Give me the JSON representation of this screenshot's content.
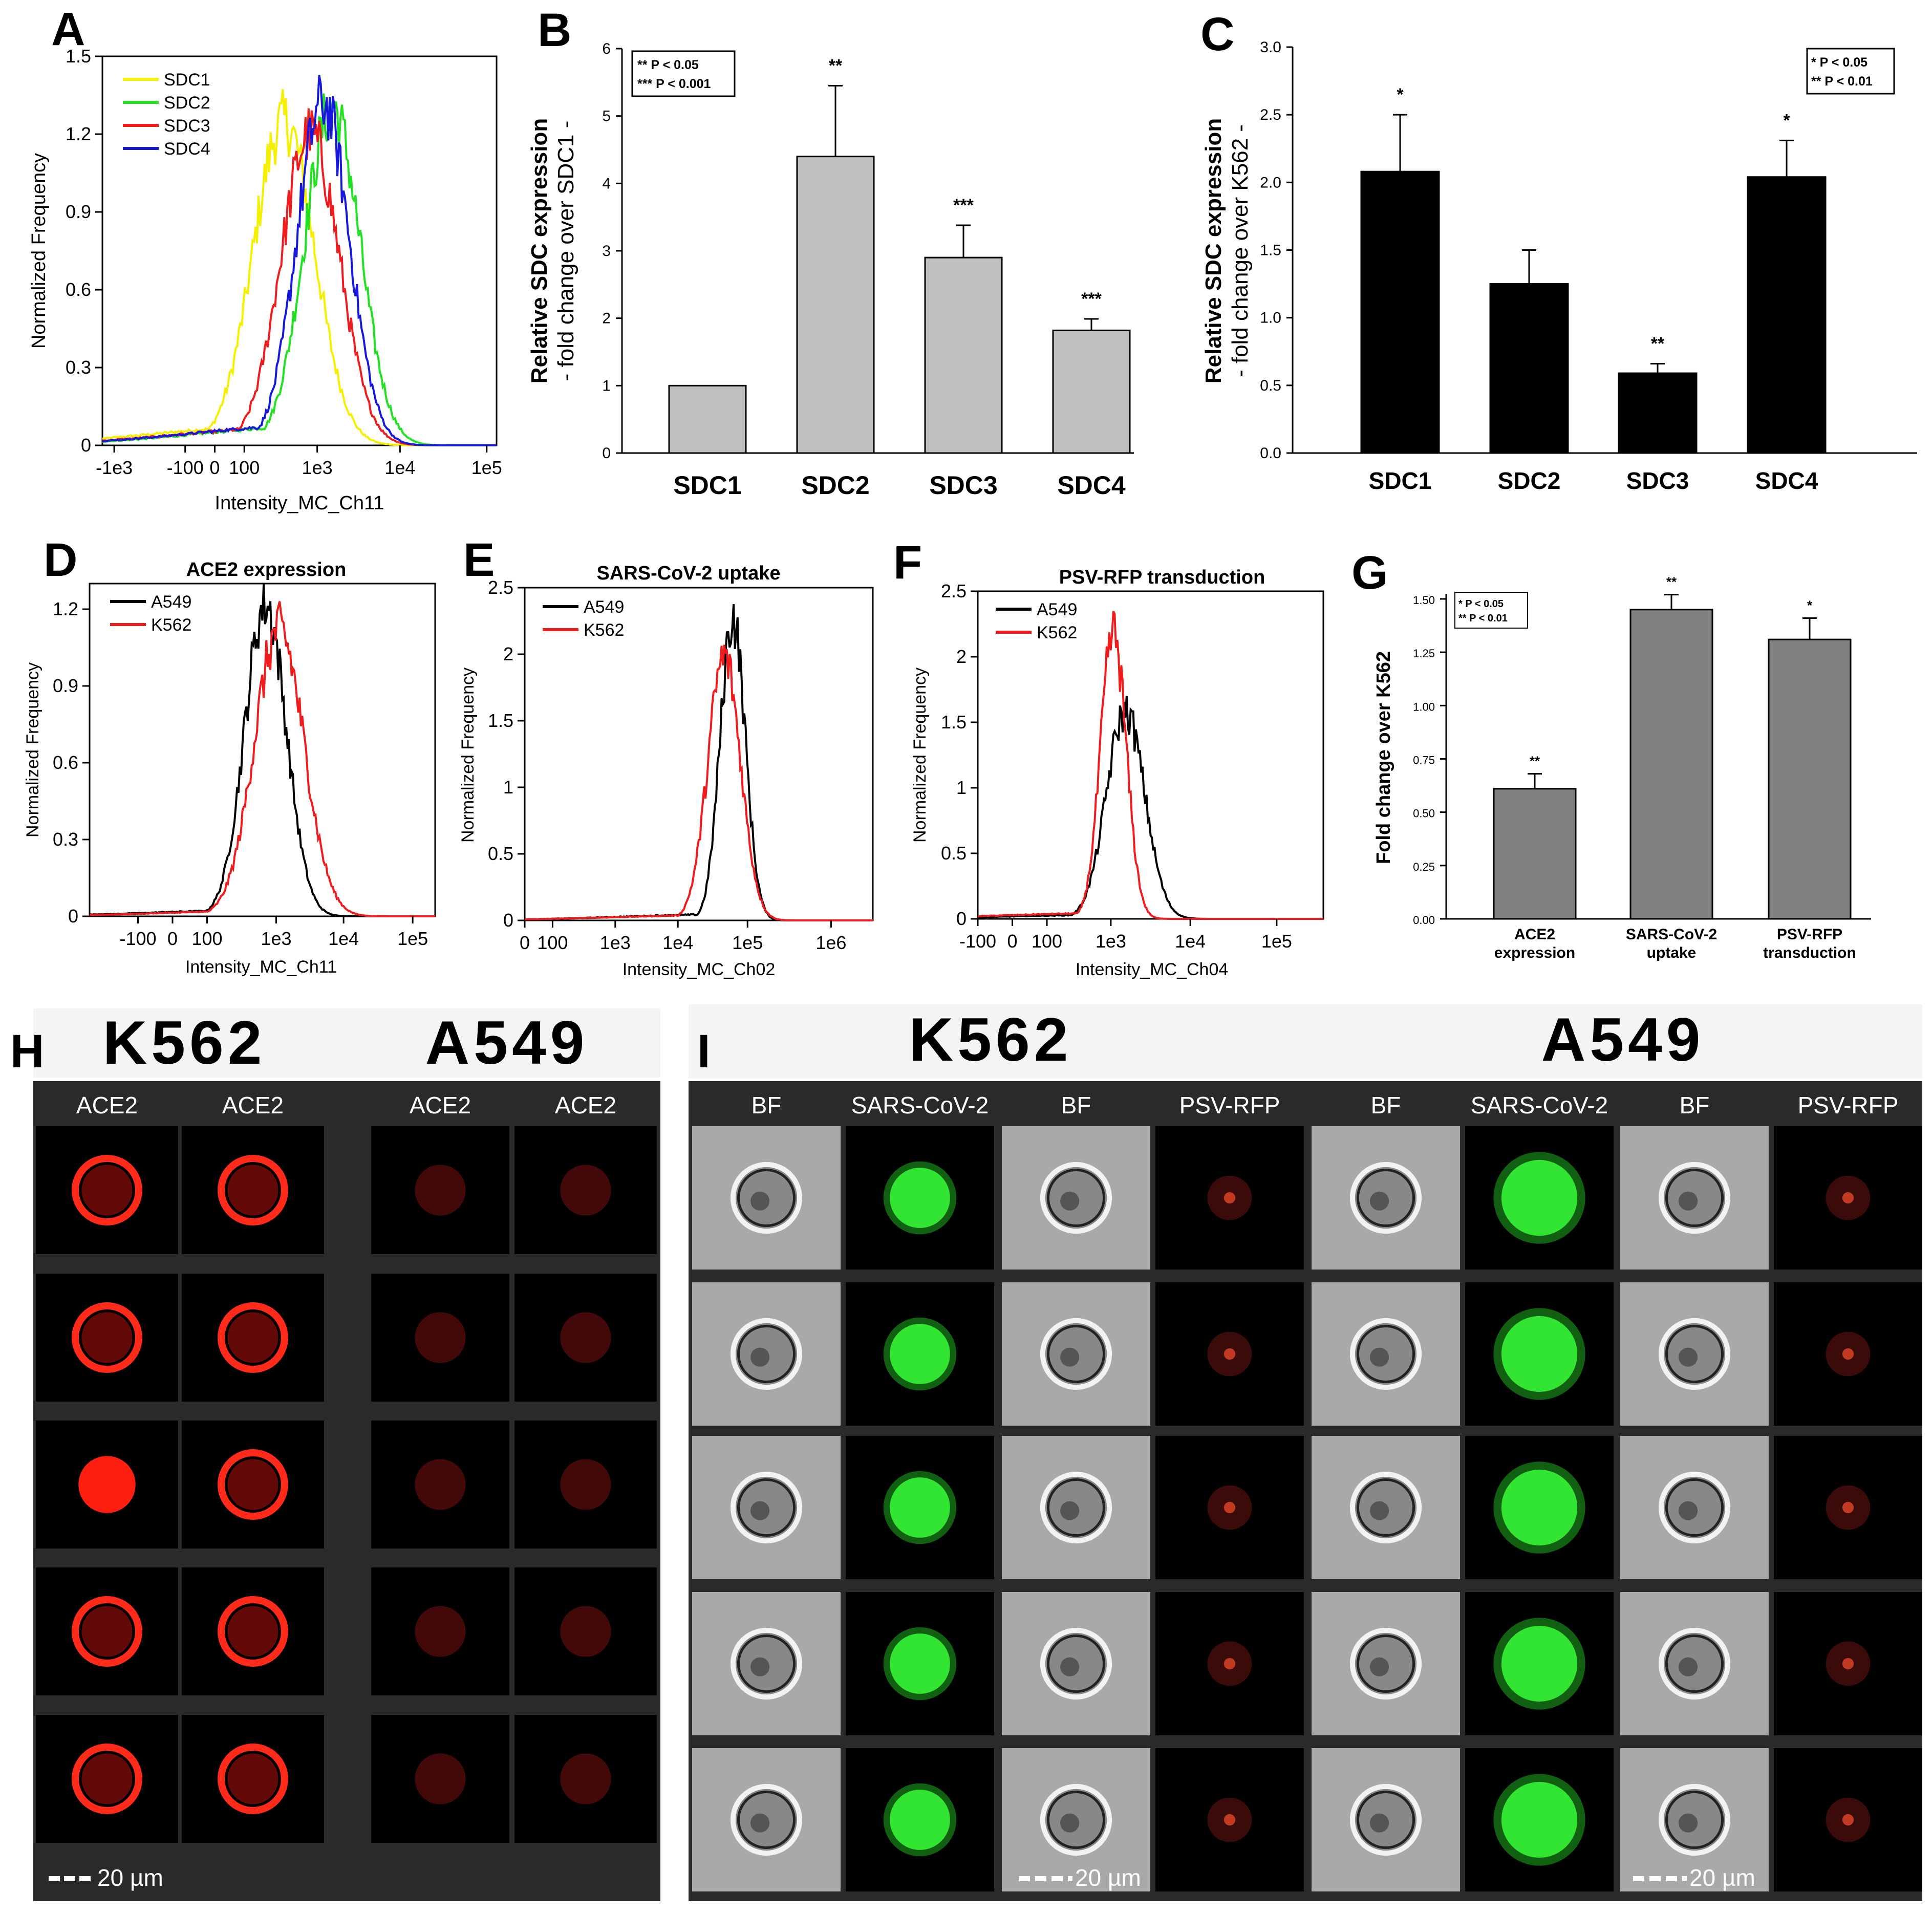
{
  "panels": {
    "A": {
      "letter": "A",
      "xlabel": "Intensity_MC_Ch11",
      "ylabel": "Normalized Frequency",
      "yticks": [
        "0",
        "0.3",
        "0.6",
        "0.9",
        "1.2",
        "1.5"
      ],
      "xticks": [
        "-1e3",
        "-100",
        "0",
        "100",
        "1e3",
        "1e4",
        "1e5"
      ],
      "legend": [
        {
          "name": "SDC1",
          "color": "#f5f000"
        },
        {
          "name": "SDC2",
          "color": "#22e022"
        },
        {
          "name": "SDC3",
          "color": "#ee1c1c"
        },
        {
          "name": "SDC4",
          "color": "#1818dd"
        }
      ]
    },
    "B": {
      "letter": "B",
      "ylabel1": "Relative SDC expression",
      "ylabel2": "- fold change over SDC1 -",
      "yticks": [
        "0",
        "1",
        "2",
        "3",
        "4",
        "5",
        "6"
      ],
      "pbox": [
        "** P < 0.05",
        "*** P < 0.001"
      ]
    },
    "C": {
      "letter": "C",
      "ylabel1": "Relative SDC expression",
      "ylabel2": "- fold change over K562 -",
      "yticks": [
        "0.0",
        "0.5",
        "1.0",
        "1.5",
        "2.0",
        "2.5",
        "3.0"
      ],
      "pbox": [
        "* P < 0.05",
        "** P < 0.01"
      ]
    },
    "D": {
      "letter": "D",
      "title": "ACE2 expression",
      "xlabel": "Intensity_MC_Ch11",
      "ylabel": "Normalized Frequency",
      "yticks": [
        "0",
        "0.3",
        "0.6",
        "0.9",
        "1.2"
      ],
      "xticks": [
        "-100",
        "0",
        "100",
        "1e3",
        "1e4",
        "1e5"
      ],
      "legend": [
        {
          "name": "A549",
          "color": "#000000"
        },
        {
          "name": "K562",
          "color": "#ee1c1c"
        }
      ]
    },
    "E": {
      "letter": "E",
      "title": "SARS-CoV-2 uptake",
      "xlabel": "Intensity_MC_Ch02",
      "ylabel": "Normalized Frequency",
      "yticks": [
        "0",
        "0.5",
        "1",
        "1.5",
        "2",
        "2.5"
      ],
      "xticks": [
        "0",
        "100",
        "1e3",
        "1e4",
        "1e5",
        "1e6"
      ],
      "legend": [
        {
          "name": "A549",
          "color": "#000000"
        },
        {
          "name": "K562",
          "color": "#ee1c1c"
        }
      ]
    },
    "F": {
      "letter": "F",
      "title": "PSV-RFP transduction",
      "xlabel": "Intensity_MC_Ch04",
      "ylabel": "Normalized Frequency",
      "yticks": [
        "0",
        "0.5",
        "1",
        "1.5",
        "2",
        "2.5"
      ],
      "xticks": [
        "-100",
        "0",
        "100",
        "1e3",
        "1e4",
        "1e5"
      ],
      "legend": [
        {
          "name": "A549",
          "color": "#000000"
        },
        {
          "name": "K562",
          "color": "#ee1c1c"
        }
      ]
    },
    "G": {
      "letter": "G",
      "ylabel": "Fold change over K562",
      "yticks": [
        "0.00",
        "0.25",
        "0.50",
        "0.75",
        "1.00",
        "1.25",
        "1.50"
      ],
      "pbox": [
        "* P < 0.05",
        "** P < 0.01"
      ]
    },
    "H": {
      "letter": "H",
      "title_left": "K562",
      "title_right": "A549",
      "col_headers": [
        "ACE2",
        "ACE2",
        "ACE2",
        "ACE2"
      ],
      "scalebar": "20 µm"
    },
    "I": {
      "letter": "I",
      "title_left": "K562",
      "title_right": "A549",
      "col_headers": [
        "BF",
        "SARS-CoV-2",
        "BF",
        "PSV-RFP",
        "BF",
        "SARS-CoV-2",
        "BF",
        "PSV-RFP"
      ],
      "scalebar": "20 µm"
    }
  },
  "chart_data": [
    {
      "panel": "A",
      "type": "line",
      "title": "",
      "xlabel": "Intensity_MC_Ch11",
      "ylabel": "Normalized Frequency",
      "xscale": "biexponential",
      "xlim_log10_display": [
        "-1e3",
        "1e5"
      ],
      "ylim": [
        0,
        1.5
      ],
      "series": [
        {
          "name": "SDC1",
          "color": "#f5f000",
          "peak_x": 350,
          "peak_y": 1.25,
          "spread": 0.42
        },
        {
          "name": "SDC2",
          "color": "#22e022",
          "peak_x": 1600,
          "peak_y": 1.3,
          "spread": 0.38
        },
        {
          "name": "SDC3",
          "color": "#ee1c1c",
          "peak_x": 800,
          "peak_y": 1.2,
          "spread": 0.4
        },
        {
          "name": "SDC4",
          "color": "#1818dd",
          "peak_x": 1200,
          "peak_y": 1.32,
          "spread": 0.36
        }
      ]
    },
    {
      "panel": "B",
      "type": "bar",
      "categories": [
        "SDC1",
        "SDC2",
        "SDC3",
        "SDC4"
      ],
      "values": [
        1.0,
        4.4,
        2.9,
        1.82
      ],
      "errors": [
        0,
        1.05,
        0.48,
        0.17
      ],
      "significance": [
        "",
        "**",
        "***",
        "***"
      ],
      "ylabel": "Relative SDC expression - fold change over SDC1 -",
      "ylim": [
        0,
        6
      ],
      "bar_color": "#c0c0c0"
    },
    {
      "panel": "C",
      "type": "bar",
      "categories": [
        "SDC1",
        "SDC2",
        "SDC3",
        "SDC4"
      ],
      "values": [
        2.08,
        1.25,
        0.59,
        2.04
      ],
      "errors": [
        0.42,
        0.25,
        0.07,
        0.27
      ],
      "significance": [
        "*",
        "",
        "**",
        "*"
      ],
      "ylabel": "Relative SDC expression - fold change over K562 -",
      "ylim": [
        0,
        3.0
      ],
      "bar_color": "#000000"
    },
    {
      "panel": "D",
      "type": "line",
      "title": "ACE2 expression",
      "xlabel": "Intensity_MC_Ch11",
      "ylabel": "Normalized Frequency",
      "ylim": [
        0,
        1.3
      ],
      "series": [
        {
          "name": "A549",
          "color": "#000000",
          "peak_x": 700,
          "peak_y": 1.22,
          "spread": 0.3
        },
        {
          "name": "K562",
          "color": "#ee1c1c",
          "peak_x": 1100,
          "peak_y": 1.12,
          "spread": 0.36
        }
      ]
    },
    {
      "panel": "E",
      "type": "line",
      "title": "SARS-CoV-2 uptake",
      "xlabel": "Intensity_MC_Ch02",
      "ylabel": "Normalized Frequency",
      "ylim": [
        0,
        2.5
      ],
      "series": [
        {
          "name": "A549",
          "color": "#000000",
          "peak_x": 75000,
          "peak_y": 2.28,
          "spread": 0.2
        },
        {
          "name": "K562",
          "color": "#ee1c1c",
          "peak_x": 55000,
          "peak_y": 1.98,
          "spread": 0.26
        }
      ]
    },
    {
      "panel": "F",
      "type": "line",
      "title": "PSV-RFP transduction",
      "xlabel": "Intensity_MC_Ch04",
      "ylabel": "Normalized Frequency",
      "ylim": [
        0,
        2.5
      ],
      "series": [
        {
          "name": "A549",
          "color": "#000000",
          "peak_x": 1700,
          "peak_y": 1.58,
          "spread": 0.3
        },
        {
          "name": "K562",
          "color": "#ee1c1c",
          "peak_x": 1100,
          "peak_y": 2.18,
          "spread": 0.2
        }
      ]
    },
    {
      "panel": "G",
      "type": "bar",
      "categories": [
        "ACE2\nexpression",
        "SARS-CoV-2\nuptake",
        "PSV-RFP\ntransduction"
      ],
      "values": [
        0.61,
        1.45,
        1.31
      ],
      "errors": [
        0.07,
        0.07,
        0.1
      ],
      "significance": [
        "**",
        "**",
        "*"
      ],
      "ylabel": "Fold change over K562",
      "ylim": [
        0,
        1.5
      ],
      "bar_color": "#808080"
    }
  ]
}
